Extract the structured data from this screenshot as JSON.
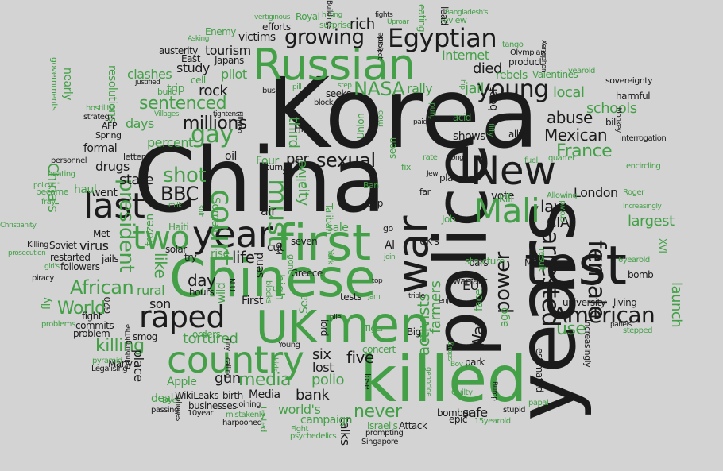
{
  "colors": {
    "background": "#d3d3d3",
    "dark": "#1b1b1b",
    "green": "#43a047"
  },
  "words": [
    {
      "t": "Korea",
      "c": "d"
    },
    {
      "t": "China",
      "c": "d"
    },
    {
      "t": "police",
      "c": "d"
    },
    {
      "t": "years",
      "c": "d"
    },
    {
      "t": "killed",
      "c": "g"
    },
    {
      "t": "Chinese",
      "c": "g"
    },
    {
      "t": "Russian",
      "c": "g"
    },
    {
      "t": "test",
      "c": "d"
    },
    {
      "t": "first",
      "c": "g"
    },
    {
      "t": "men",
      "c": "g"
    },
    {
      "t": "UK",
      "c": "g"
    },
    {
      "t": "New",
      "c": "d"
    },
    {
      "t": "country",
      "c": "g"
    },
    {
      "t": "war",
      "c": "d"
    },
    {
      "t": "last",
      "c": "d"
    },
    {
      "t": "year",
      "c": "d"
    },
    {
      "t": "Mali",
      "c": "g"
    },
    {
      "t": "two",
      "c": "g"
    },
    {
      "t": "raped",
      "c": "d"
    },
    {
      "t": "American",
      "c": "d"
    },
    {
      "t": "Egyptian",
      "c": "d"
    },
    {
      "t": "court",
      "c": "g"
    },
    {
      "t": "must",
      "c": "g"
    },
    {
      "t": "arrested",
      "c": "d"
    },
    {
      "t": "female",
      "c": "d"
    },
    {
      "t": "growing",
      "c": "d"
    },
    {
      "t": "young",
      "c": "d"
    },
    {
      "t": "NASA",
      "c": "g"
    },
    {
      "t": "sexual",
      "c": "d"
    },
    {
      "t": "gay",
      "c": "g"
    },
    {
      "t": "BBC",
      "c": "d"
    },
    {
      "t": "millions",
      "c": "d"
    },
    {
      "t": "sentenced",
      "c": "g"
    },
    {
      "t": "France",
      "c": "g"
    },
    {
      "t": "Mexican",
      "c": "d"
    },
    {
      "t": "abuse",
      "c": "d"
    },
    {
      "t": "power",
      "c": "d"
    },
    {
      "t": "president",
      "c": "g"
    },
    {
      "t": "African",
      "c": "g"
    },
    {
      "t": "World",
      "c": "g"
    },
    {
      "t": "killing",
      "c": "g"
    },
    {
      "t": "tortured",
      "c": "g"
    },
    {
      "t": "day",
      "c": "d"
    },
    {
      "t": "life",
      "c": "d"
    },
    {
      "t": "media",
      "c": "g"
    },
    {
      "t": "activists",
      "c": "g"
    },
    {
      "t": "never",
      "c": "g"
    },
    {
      "t": "farmers",
      "c": "g"
    },
    {
      "t": "use",
      "c": "g"
    },
    {
      "t": "launch",
      "c": "g"
    },
    {
      "t": "shot",
      "c": "g"
    },
    {
      "t": "state",
      "c": "d"
    },
    {
      "t": "rock",
      "c": "d"
    },
    {
      "t": "died",
      "c": "d"
    },
    {
      "t": "Internet",
      "c": "g"
    },
    {
      "t": "jail",
      "c": "g"
    },
    {
      "t": "law",
      "c": "d"
    },
    {
      "t": "CIA",
      "c": "d"
    },
    {
      "t": "London",
      "c": "d"
    },
    {
      "t": "largest",
      "c": "g"
    },
    {
      "t": "schools",
      "c": "g"
    },
    {
      "t": "local",
      "c": "g"
    },
    {
      "t": "like",
      "c": "g"
    },
    {
      "t": "five",
      "c": "d"
    },
    {
      "t": "six",
      "c": "d"
    },
    {
      "t": "lost",
      "c": "d"
    },
    {
      "t": "bank",
      "c": "d"
    },
    {
      "t": "polio",
      "c": "g"
    },
    {
      "t": "world's",
      "c": "g"
    },
    {
      "t": "talks",
      "c": "d"
    },
    {
      "t": "safe",
      "c": "d"
    },
    {
      "t": "son",
      "c": "d"
    },
    {
      "t": "place",
      "c": "d"
    },
    {
      "t": "Apple",
      "c": "g"
    },
    {
      "t": "gun",
      "c": "d"
    },
    {
      "t": "third",
      "c": "g"
    },
    {
      "t": "city",
      "c": "g"
    },
    {
      "t": "rural",
      "c": "g"
    },
    {
      "t": "percent",
      "c": "g"
    },
    {
      "t": "days",
      "c": "g"
    },
    {
      "t": "pilot",
      "c": "g"
    },
    {
      "t": "study",
      "c": "d"
    },
    {
      "t": "clashes",
      "c": "g"
    },
    {
      "t": "rally",
      "c": "g"
    },
    {
      "t": "rebels",
      "c": "g"
    },
    {
      "t": "tourism",
      "c": "d"
    },
    {
      "t": "victims",
      "c": "d"
    },
    {
      "t": "rich",
      "c": "d"
    },
    {
      "t": "EU",
      "c": "d"
    },
    {
      "t": "War",
      "c": "d"
    },
    {
      "t": "vote",
      "c": "d"
    },
    {
      "t": "kill",
      "c": "g"
    },
    {
      "t": "virus",
      "c": "d"
    },
    {
      "t": "drugs",
      "c": "d"
    },
    {
      "t": "formal",
      "c": "d"
    },
    {
      "t": "went",
      "c": "d"
    },
    {
      "t": "China's",
      "c": "g"
    },
    {
      "t": "hours",
      "c": "d"
    },
    {
      "t": "Media",
      "c": "d"
    },
    {
      "t": "WikiLeaks",
      "c": "d"
    },
    {
      "t": "birth",
      "c": "d"
    },
    {
      "t": "businesses",
      "c": "d"
    },
    {
      "t": "deal",
      "c": "g"
    },
    {
      "t": "university",
      "c": "d"
    },
    {
      "t": "living",
      "c": "d"
    },
    {
      "t": "estimated",
      "c": "d"
    },
    {
      "t": "bomb",
      "c": "d"
    },
    {
      "t": "campaign",
      "c": "g"
    },
    {
      "t": "bomber",
      "c": "d"
    },
    {
      "t": "Attack",
      "c": "d"
    },
    {
      "t": "Israel's",
      "c": "g"
    },
    {
      "t": "epic",
      "c": "d"
    },
    {
      "t": "park",
      "c": "d"
    },
    {
      "t": "concert",
      "c": "g"
    },
    {
      "t": "tests",
      "c": "d"
    },
    {
      "t": "Greece",
      "c": "d"
    },
    {
      "t": "seven",
      "c": "d"
    },
    {
      "t": "cut",
      "c": "d"
    },
    {
      "t": "sale",
      "c": "g"
    },
    {
      "t": "air",
      "c": "d"
    },
    {
      "t": "send",
      "c": "d"
    },
    {
      "t": "Somali",
      "c": "g"
    },
    {
      "t": "oil",
      "c": "d"
    },
    {
      "t": "per",
      "c": "d"
    },
    {
      "t": "Four",
      "c": "g"
    },
    {
      "t": "HIV",
      "c": "d"
    },
    {
      "t": "alive",
      "c": "g"
    },
    {
      "t": "high",
      "c": "g"
    },
    {
      "t": "Sea",
      "c": "g"
    },
    {
      "t": "First",
      "c": "d"
    },
    {
      "t": "wild",
      "c": "g"
    },
    {
      "t": "rise",
      "c": "g"
    },
    {
      "t": "frozen",
      "c": "g"
    },
    {
      "t": "fight",
      "c": "d"
    },
    {
      "t": "commits",
      "c": "d"
    },
    {
      "t": "problem",
      "c": "d"
    },
    {
      "t": "smog",
      "c": "d"
    },
    {
      "t": "Al",
      "c": "d"
    },
    {
      "t": "UK's",
      "c": "d"
    },
    {
      "t": "Cap",
      "c": "d"
    },
    {
      "t": "plan",
      "c": "d"
    },
    {
      "t": "shows",
      "c": "d"
    },
    {
      "t": "ally",
      "c": "d"
    },
    {
      "t": "bill",
      "c": "d"
    },
    {
      "t": "face",
      "c": "g"
    },
    {
      "t": "ago",
      "c": "g"
    },
    {
      "t": "warrant",
      "c": "d"
    },
    {
      "t": "MP",
      "c": "d"
    },
    {
      "t": "bars",
      "c": "d"
    },
    {
      "t": "Job",
      "c": "g"
    },
    {
      "t": "structure",
      "c": "g"
    },
    {
      "t": "Taliban",
      "c": "g"
    },
    {
      "t": "acid",
      "c": "g"
    },
    {
      "t": "beef",
      "c": "d"
    },
    {
      "t": "harmful",
      "c": "d"
    },
    {
      "t": "sovereignty",
      "c": "d"
    },
    {
      "t": "product",
      "c": "d"
    },
    {
      "t": "Valentines",
      "c": "g"
    },
    {
      "t": "trip",
      "c": "g"
    },
    {
      "t": "cell",
      "c": "g"
    },
    {
      "t": "austerity",
      "c": "d"
    },
    {
      "t": "East",
      "c": "d"
    },
    {
      "t": "Japans",
      "c": "d"
    },
    {
      "t": "efforts",
      "c": "d"
    },
    {
      "t": "Royal",
      "c": "g"
    },
    {
      "t": "Enemy",
      "c": "g"
    },
    {
      "t": "surprise",
      "c": "g"
    },
    {
      "t": "trade",
      "c": "d"
    },
    {
      "t": "review",
      "c": "g"
    },
    {
      "t": "tango",
      "c": "g"
    },
    {
      "t": "Olympian",
      "c": "d"
    },
    {
      "t": "seeks",
      "c": "d"
    },
    {
      "t": "Big",
      "c": "d"
    },
    {
      "t": "lord",
      "c": "d"
    },
    {
      "t": "Many",
      "c": "d"
    },
    {
      "t": "Young",
      "c": "d"
    },
    {
      "t": "orders",
      "c": "g"
    },
    {
      "t": "Met",
      "c": "d"
    },
    {
      "t": "solar",
      "c": "d"
    },
    {
      "t": "try",
      "c": "d"
    },
    {
      "t": "Haiti",
      "c": "g"
    },
    {
      "t": "followers",
      "c": "d"
    },
    {
      "t": "restarted",
      "c": "d"
    },
    {
      "t": "Soviet",
      "c": "d"
    },
    {
      "t": "Killing",
      "c": "d"
    },
    {
      "t": "piracy",
      "c": "d"
    },
    {
      "t": "jails",
      "c": "d"
    },
    {
      "t": "letter",
      "c": "d"
    },
    {
      "t": "Spring",
      "c": "d"
    },
    {
      "t": "AFP",
      "c": "d"
    },
    {
      "t": "strategic",
      "c": "d"
    },
    {
      "t": "personnel",
      "c": "d"
    },
    {
      "t": "haul",
      "c": "g"
    },
    {
      "t": "became",
      "c": "g"
    },
    {
      "t": "fray",
      "c": "g"
    },
    {
      "t": "passing",
      "c": "d"
    },
    {
      "t": "10year",
      "c": "d"
    },
    {
      "t": "mistakenly",
      "c": "g"
    },
    {
      "t": "harpooned",
      "c": "d"
    },
    {
      "t": "joining",
      "c": "d"
    },
    {
      "t": "Fight",
      "c": "g"
    },
    {
      "t": "psychedelics",
      "c": "g"
    },
    {
      "t": "Singapore",
      "c": "d"
    },
    {
      "t": "prompting",
      "c": "d"
    },
    {
      "t": "15yearold",
      "c": "g"
    },
    {
      "t": "stupid",
      "c": "d"
    },
    {
      "t": "papal",
      "c": "g"
    },
    {
      "t": "Guilty",
      "c": "g"
    },
    {
      "t": "increasingly",
      "c": "d"
    },
    {
      "t": "6yearold",
      "c": "g"
    },
    {
      "t": "XVI",
      "c": "g"
    },
    {
      "t": "Roger",
      "c": "g"
    },
    {
      "t": "encircling",
      "c": "g"
    },
    {
      "t": "interrogation",
      "c": "d"
    },
    {
      "t": "yearold",
      "c": "g"
    },
    {
      "t": "Legalising",
      "c": "d"
    },
    {
      "t": "pyramid",
      "c": "g"
    },
    {
      "t": "Dyes",
      "c": "g"
    },
    {
      "t": "G20",
      "c": "d"
    },
    {
      "t": "fly",
      "c": "g"
    },
    {
      "t": "problems",
      "c": "g"
    },
    {
      "t": "Christianity",
      "c": "g"
    },
    {
      "t": "heating",
      "c": "g"
    },
    {
      "t": "hostility",
      "c": "g"
    },
    {
      "t": "resolutions",
      "c": "g"
    },
    {
      "t": "nearly",
      "c": "g"
    },
    {
      "t": "governments",
      "c": "g"
    },
    {
      "t": "Asking",
      "c": "g"
    },
    {
      "t": "vertiginous",
      "c": "g"
    },
    {
      "t": "hitting",
      "c": "g"
    },
    {
      "t": "fights",
      "c": "d"
    },
    {
      "t": "Uproar",
      "c": "g"
    },
    {
      "t": "eating",
      "c": "g"
    },
    {
      "t": "lead",
      "c": "d"
    },
    {
      "t": "Bangladesh's",
      "c": "g"
    },
    {
      "t": "mob",
      "c": "g"
    },
    {
      "t": "Union",
      "c": "g"
    },
    {
      "t": "seen",
      "c": "g"
    },
    {
      "t": "fund",
      "c": "g"
    },
    {
      "t": "fifty",
      "c": "g"
    },
    {
      "t": "quarter",
      "c": "g"
    },
    {
      "t": "fuel",
      "c": "g"
    },
    {
      "t": "Allowing",
      "c": "g"
    },
    {
      "t": "Increasingly",
      "c": "g"
    },
    {
      "t": "crowd",
      "c": "g"
    },
    {
      "t": "result",
      "c": "g"
    },
    {
      "t": "stepped",
      "c": "g"
    },
    {
      "t": "panels",
      "c": "d"
    },
    {
      "t": "Bump",
      "c": "d"
    },
    {
      "t": "Drops",
      "c": "g"
    },
    {
      "t": "genocide",
      "c": "g"
    },
    {
      "t": "Boy",
      "c": "g"
    },
    {
      "t": "Tiger",
      "c": "g"
    },
    {
      "t": "lose",
      "c": "d"
    },
    {
      "t": "Tiny",
      "c": "d"
    },
    {
      "t": "calling",
      "c": "d"
    },
    {
      "t": "gone",
      "c": "g"
    },
    {
      "t": "York",
      "c": "g"
    },
    {
      "t": "blocks",
      "c": "g"
    },
    {
      "t": "kids",
      "c": "g"
    },
    {
      "t": "tested",
      "c": "g"
    },
    {
      "t": "top",
      "c": "d"
    },
    {
      "t": "jam",
      "c": "g"
    },
    {
      "t": "triple",
      "c": "d"
    },
    {
      "t": "enjoy",
      "c": "d"
    },
    {
      "t": "join",
      "c": "g"
    },
    {
      "t": "go",
      "c": "d"
    },
    {
      "t": "Ban",
      "c": "g"
    },
    {
      "t": "far",
      "c": "d"
    },
    {
      "t": "Jew",
      "c": "d"
    },
    {
      "t": "Kong",
      "c": "d"
    },
    {
      "t": "fix",
      "c": "g"
    },
    {
      "t": "rate",
      "c": "g"
    },
    {
      "t": "paid",
      "c": "d"
    },
    {
      "t": "turn",
      "c": "d"
    },
    {
      "t": "Un",
      "c": "d"
    },
    {
      "t": "block",
      "c": "d"
    },
    {
      "t": "bus",
      "c": "d"
    },
    {
      "t": "pill",
      "c": "g"
    },
    {
      "t": "step",
      "c": "g"
    },
    {
      "t": "Filipino",
      "c": "d"
    },
    {
      "t": "tightens",
      "c": "d"
    },
    {
      "t": "Villages",
      "c": "g"
    },
    {
      "t": "build",
      "c": "g"
    },
    {
      "t": "justified",
      "c": "d"
    },
    {
      "t": "hip",
      "c": "g"
    },
    {
      "t": "Monkey",
      "c": "d"
    },
    {
      "t": "Xenophon",
      "c": "d"
    },
    {
      "t": "subject",
      "c": "d"
    },
    {
      "t": "Buildings",
      "c": "d"
    },
    {
      "t": "N.U",
      "c": "d"
    },
    {
      "t": "GM",
      "c": "d"
    },
    {
      "t": "al",
      "c": "d"
    },
    {
      "t": "pile",
      "c": "d"
    },
    {
      "t": "milk",
      "c": "g"
    },
    {
      "t": "suit",
      "c": "g"
    },
    {
      "t": "policyt",
      "c": "g"
    },
    {
      "t": "EdinburghThe",
      "c": "d"
    },
    {
      "t": "phones",
      "c": "d"
    },
    {
      "t": "prosecution",
      "c": "g"
    },
    {
      "t": "girl's",
      "c": "g"
    }
  ]
}
